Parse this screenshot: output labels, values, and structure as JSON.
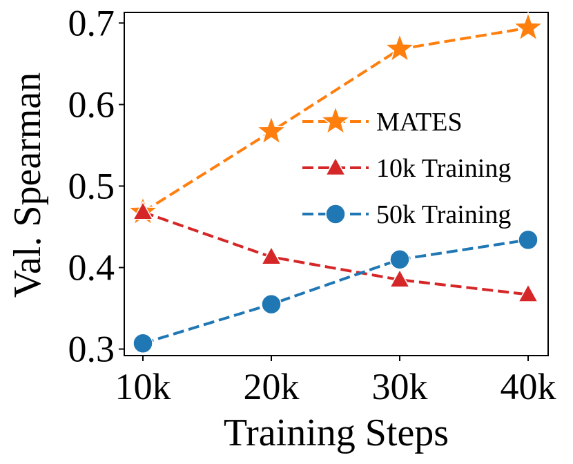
{
  "chart_data": {
    "type": "line",
    "title": "",
    "xlabel": "Training Steps",
    "ylabel": "Val. Spearman",
    "categories": [
      "10k",
      "20k",
      "30k",
      "40k"
    ],
    "yticks": [
      "0.3",
      "0.4",
      "0.5",
      "0.6",
      "0.7"
    ],
    "ylim": [
      0.292,
      0.713
    ],
    "legend_position": "right-center",
    "grid": false,
    "series": [
      {
        "name": "MATES",
        "marker": "star",
        "color": "#ff7f0e",
        "values": [
          0.468,
          0.567,
          0.668,
          0.694
        ]
      },
      {
        "name": "10k Training",
        "marker": "triangle",
        "color": "#d62728",
        "values": [
          0.468,
          0.413,
          0.385,
          0.367
        ]
      },
      {
        "name": "50k Training",
        "marker": "circle",
        "color": "#1f77b4",
        "values": [
          0.307,
          0.355,
          0.41,
          0.434
        ]
      }
    ]
  }
}
